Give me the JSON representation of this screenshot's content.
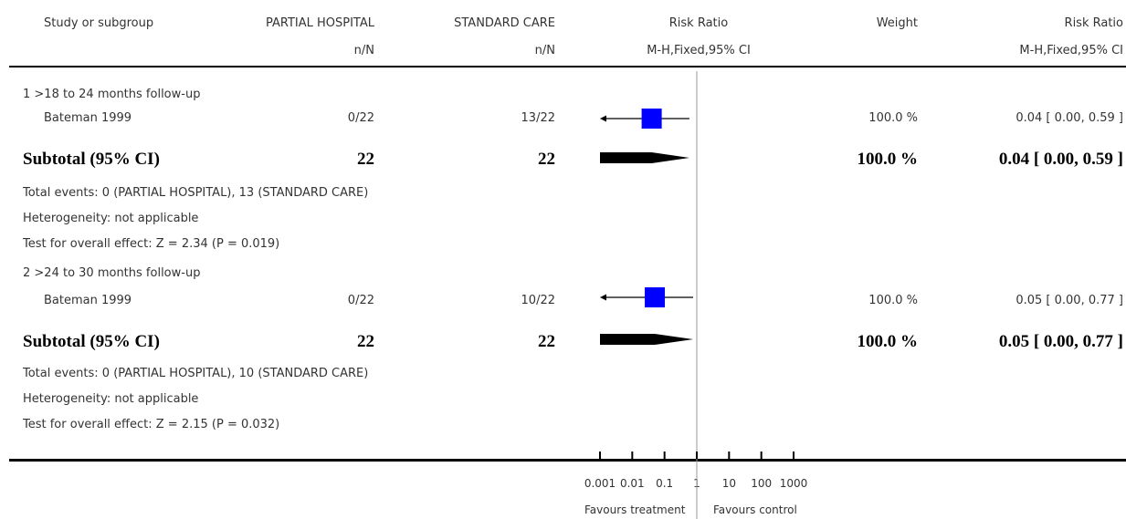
{
  "header": {
    "col1": "Study or subgroup",
    "col2": "PARTIAL HOSPITAL",
    "col2_sub": "n/N",
    "col3": "STANDARD CARE",
    "col3_sub": "n/N",
    "col4": "Risk Ratio",
    "col4_sub": "M-H,Fixed,95% CI",
    "col5": "Weight",
    "col6": "Risk Ratio",
    "col6_sub": "M-H,Fixed,95% CI"
  },
  "groups": [
    {
      "title": "1 >18 to 24 months follow-up",
      "study": {
        "name": "Bateman 1999",
        "treatment": "0/22",
        "control": "13/22",
        "weight": "100.0 %",
        "ci_text": "0.04 [ 0.00, 0.59 ]"
      },
      "subtotal": {
        "label": "Subtotal (95% CI)",
        "treatment": "22",
        "control": "22",
        "weight": "100.0 %",
        "ci_text": "0.04 [ 0.00, 0.59 ]"
      },
      "notes": [
        "Total events: 0 (PARTIAL HOSPITAL), 13 (STANDARD CARE)",
        "Heterogeneity: not applicable",
        "Test for overall effect: Z = 2.34 (P = 0.019)"
      ]
    },
    {
      "title": "2 >24 to 30 months follow-up",
      "study": {
        "name": "Bateman 1999",
        "treatment": "0/22",
        "control": "10/22",
        "weight": "100.0 %",
        "ci_text": "0.05 [ 0.00, 0.77 ]"
      },
      "subtotal": {
        "label": "Subtotal (95% CI)",
        "treatment": "22",
        "control": "22",
        "weight": "100.0 %",
        "ci_text": "0.05 [ 0.00, 0.77 ]"
      },
      "notes": [
        "Total events: 0 (PARTIAL HOSPITAL), 10 (STANDARD CARE)",
        "Heterogeneity: not applicable",
        "Test for overall effect: Z = 2.15 (P = 0.032)"
      ]
    }
  ],
  "axis": {
    "ticks": [
      "0.001",
      "0.01",
      "0.1",
      "1",
      "10",
      "100",
      "1000"
    ],
    "favours_left": "Favours treatment",
    "favours_right": "Favours control"
  },
  "colors": {
    "marker": "#0000ff",
    "line": "#000000",
    "null_line": "#999999"
  },
  "chart_data": {
    "type": "forest",
    "scale": "log",
    "xlim": [
      0.001,
      1000
    ],
    "null_value": 1,
    "points": [
      {
        "group": 1,
        "study": "Bateman 1999",
        "estimate": 0.04,
        "ci_low": 0.0,
        "ci_high": 0.59,
        "left_arrow": true
      },
      {
        "group": 2,
        "study": "Bateman 1999",
        "estimate": 0.05,
        "ci_low": 0.0,
        "ci_high": 0.77,
        "left_arrow": true
      }
    ],
    "subtotals": [
      {
        "group": 1,
        "estimate": 0.04,
        "ci_low": 0.0,
        "ci_high": 0.59
      },
      {
        "group": 2,
        "estimate": 0.05,
        "ci_low": 0.0,
        "ci_high": 0.77
      }
    ]
  }
}
